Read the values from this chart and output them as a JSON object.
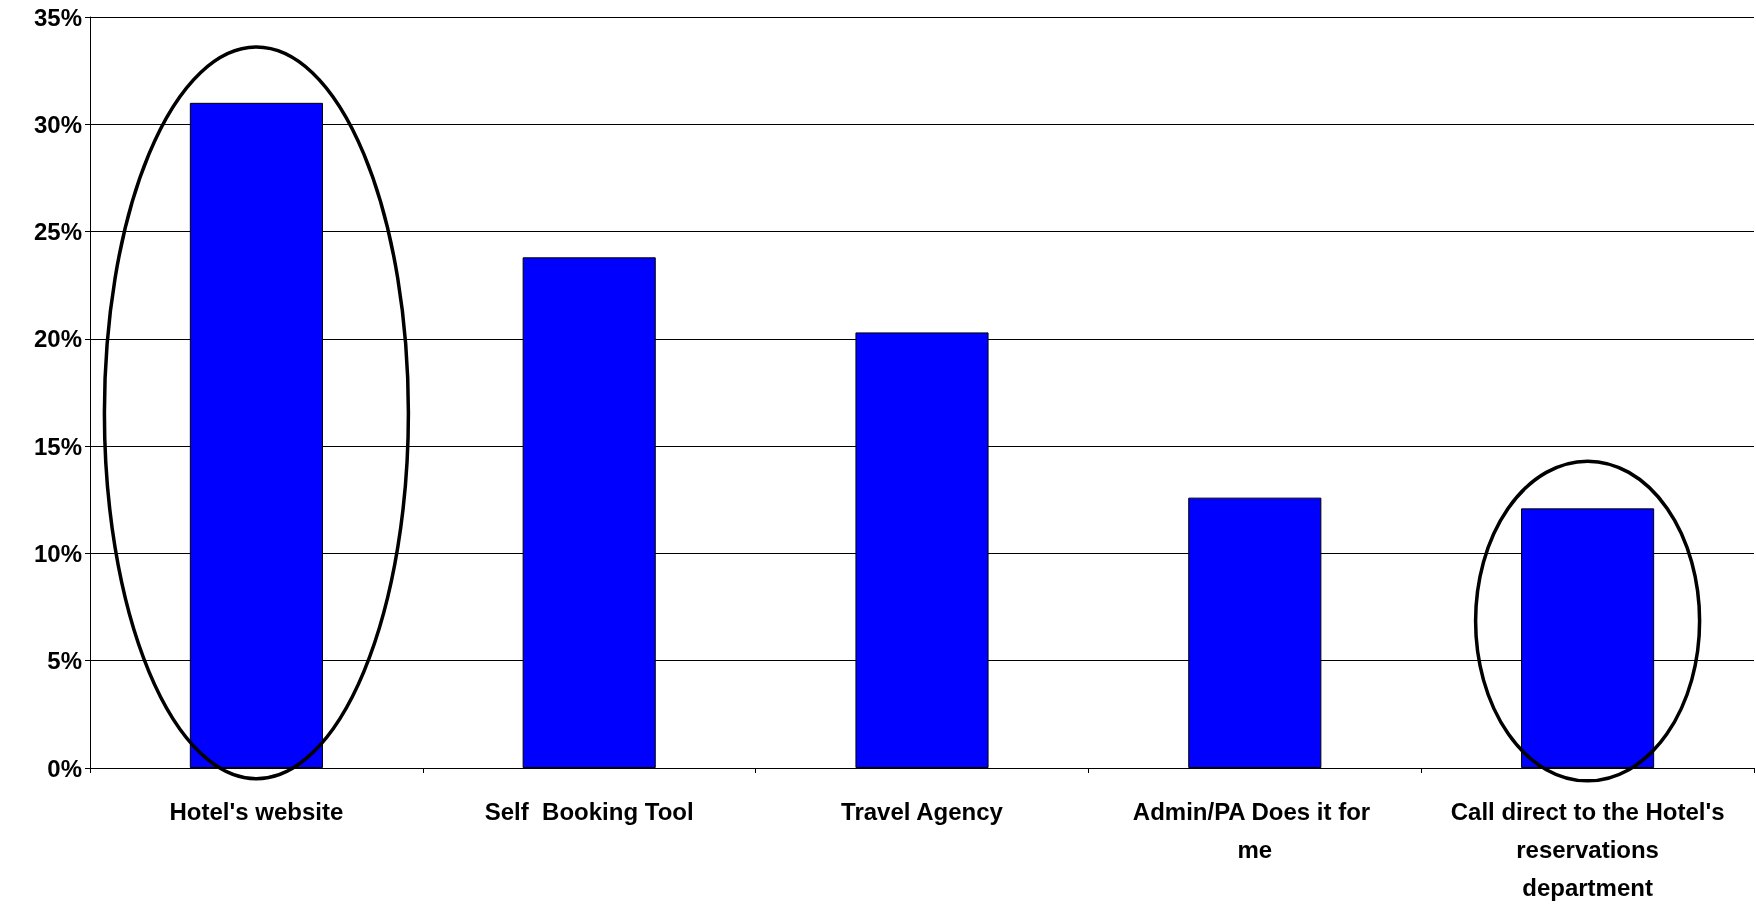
{
  "chart_data": {
    "type": "bar",
    "categories": [
      "Hotel's website",
      "Self  Booking Tool",
      "Travel Agency",
      "Admin/PA Does it for me",
      "Call direct to the Hotel's reservations department"
    ],
    "values": [
      31.0,
      23.8,
      20.3,
      12.6,
      12.1
    ],
    "color": "#0000ff",
    "ylim": [
      0,
      35
    ],
    "yticks": [
      {
        "value": 0,
        "label": "0%"
      },
      {
        "value": 5,
        "label": "5%"
      },
      {
        "value": 10,
        "label": "10%"
      },
      {
        "value": 15,
        "label": "15%"
      },
      {
        "value": 20,
        "label": "20%"
      },
      {
        "value": 25,
        "label": "25%"
      },
      {
        "value": 30,
        "label": "30%"
      },
      {
        "value": 35,
        "label": "35%"
      }
    ],
    "grid": "y"
  }
}
